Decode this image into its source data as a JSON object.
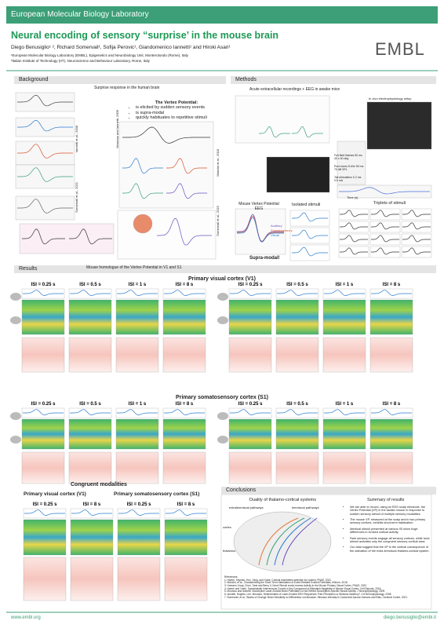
{
  "header": {
    "organization": "European Molecular Biology Laboratory",
    "title": "Neural encoding of sensory “surprise’ in the mouse brain",
    "authors": "Diego Benusiglio¹ ², Richard Somervail¹, Sofija Perovic¹, Giandomenico Iannetti¹ and Hiroki Asari¹",
    "affiliations": [
      "¹European Molecular Biology Laboratory (EMBL), Epigenetics and Neurobiology Unit, Monterotondo (Rome), Italy",
      "²Italian Institute of Technology (IIT), Neuroscience and Behaviour Laboratory, Rome, Italy"
    ],
    "logo": "EMBL"
  },
  "background": {
    "heading": "Background",
    "figure_title": "Surprise response in the human brain",
    "vertex_title": "The Vertex Potential:",
    "bullets": [
      "is elicited by sudden sensory events",
      "is supra-modal",
      "quickly habituates to repetitive stimuli"
    ],
    "citations": [
      "Mouraux and Iannetti, 2009",
      "Iannetti et al., 2008",
      "Somervail et al., 2021",
      "Mancini et al., 2018",
      "Somervail et al., 2022"
    ]
  },
  "methods": {
    "heading": "Methods",
    "subtitle": "Acute extracellular recordings + EEG in awake mice",
    "setup": "In vivo electrophysiology setup",
    "stimuli": [
      "Full-field flashes 50 ms 40 x 40 deg",
      "Pure tones 8 kHz 50 ms 70 dB SPL",
      "Tail stimulation 0.2 ms 0.5 mA"
    ],
    "vertex": "Mouse Vertex Potential EEG",
    "isolated": "Isolated stimuli",
    "triplets": "Triplets of stimuli",
    "legend": [
      "Auditory",
      "Somatosensory",
      "Visual"
    ],
    "supramodal": "Supra-modal!",
    "xlabel": "Time (s)"
  },
  "results": {
    "heading": "Results",
    "subtitle": "Mouse homologue of the Vertex Potential in V1 and S1",
    "v1": "Primary visual cortex (V1)",
    "s1": "Primary somatosensory cortex (S1)",
    "isi": [
      "ISI = 0.25 s",
      "ISI = 0.5 s",
      "ISI = 1 s",
      "ISI = 8 s"
    ],
    "congruent": "Congruent modalities"
  },
  "conclusions": {
    "heading": "Conclusions",
    "diagram_title": "Duality of thalamo-cortical systems",
    "extralemniscal": "extralemniscal pathways",
    "lemniscal": "lemniscal pathways",
    "cortex": "cortex",
    "thalamus": "thalamus",
    "summary_title": "Summary of results",
    "summary": [
      "We are able to record, using an EEG scalp electrode, the Vertex Potential (VP) in the awake mouse in response to sudden sensory stimuli of multiple sensory modalities.",
      "The mouse VP, measured at the scalp and in two primary sensory cortices, exhibits short-term habituation.",
      "Identical stimuli presented at various ISI show huge differences in evoked cortical activity.",
      "Rare sensory events engage all sensory cortices, while tonic stimuli activates only the congruent sensory cortical area.",
      "Our data suggest that the VP is the cortical consequence of the activation of the extra-lemniscal thalamo-cortical system."
    ],
    "references_title": "References:",
    "references": [
      "1. Hamm, Shymko, Hoo, Yang, and Yuste, Cortical ensembles selective for context, PNAS, 2021.",
      "2. Mancini, et al., Characterizing the Short-Term Habituation of Event-Related Evoked Potentials, eNeuro, 2018.",
      "3. Homann, Koay, Chen, Tank and Berry II, Novel Stimuli evoke excess Activity in the Mouse Primary Visual Cortex, PNAS, 2022.",
      "4. Hamm and Yuste, Somatostatin Interneurons Control a Key Component of Mismatch Negativity in Mouse Visual Cortex, Cell Reports, 2016.",
      "5. Mouraux and Iannetti, Nociceptive Laser-Evoked Brain Potentials Do Not Reflect Nociceptive-Specific Neural Activity, J Neurophysiology, 2009.",
      "6. Iannetti, Hughes, Lee, Mouraux, Determinants of Laser-Evoked EEG Responses: Pain Perception or Stimulus Saliency? J of Neurophysiology, 2008.",
      "7. Somervail, et al., Waves of Change: Brain Sensitivity to Differential, not Absolute, Stimulus Intensity is Conserved Across Humans and Rats, Cerebral Cortex, 2021."
    ]
  },
  "footer": {
    "website": "www.embl.org",
    "email": "diego.benusiglio@embl.it"
  }
}
